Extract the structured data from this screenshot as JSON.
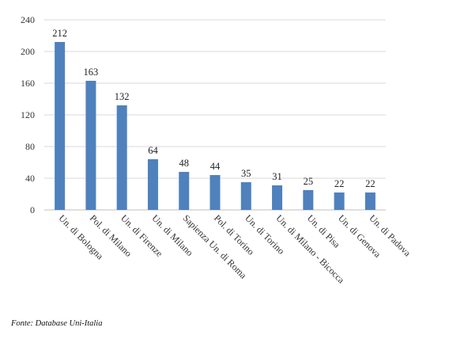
{
  "chart_data": {
    "type": "bar",
    "categories": [
      "Un. di Bologna",
      "Pol. di Milano",
      "Un. di Firenze",
      "Un. di Milano",
      "Sapienza Un. di Roma",
      "Pol. di Torino",
      "Un. di Torino",
      "Un. di Milano - Bicocca",
      "Un. di Pisa",
      "Un. di Genova",
      "Un. di Padova"
    ],
    "values": [
      212,
      163,
      132,
      64,
      48,
      44,
      35,
      31,
      25,
      22,
      22
    ],
    "data_labels": true,
    "title": "",
    "xlabel": "",
    "ylabel": "",
    "ylim": [
      0,
      240
    ],
    "yticks": [
      0,
      40,
      80,
      120,
      160,
      200,
      240
    ],
    "grid": "horizontal",
    "legend": "none",
    "bar_color": "#4f81bd",
    "grid_color": "#d9d9d9"
  },
  "source_note": "Fonte: Database Uni-Italia"
}
